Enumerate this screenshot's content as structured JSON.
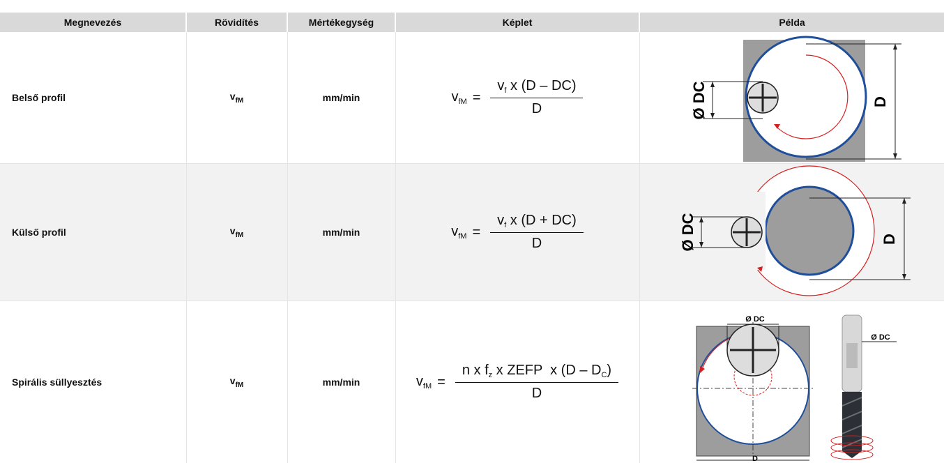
{
  "header": {
    "columns": [
      "Megnevezés",
      "Rövidítés",
      "Mértékegység",
      "Képlet",
      "Példa"
    ]
  },
  "rows": [
    {
      "name": "Belső profil",
      "abbr": {
        "base": "v",
        "sub": "fM"
      },
      "unit": "mm/min",
      "formula": {
        "lhs": {
          "base": "v",
          "sub": "fM"
        },
        "equals": "=",
        "numerator": [
          {
            "text": "v",
            "sub": "f"
          },
          {
            "text": " x (D – DC)"
          }
        ],
        "denominator": "D"
      },
      "example_labels": [
        "Ø DC",
        "D"
      ]
    },
    {
      "name": "Külső profil",
      "abbr": {
        "base": "v",
        "sub": "fM"
      },
      "unit": "mm/min",
      "formula": {
        "lhs": {
          "base": "v",
          "sub": "fM"
        },
        "equals": "=",
        "numerator": [
          {
            "text": "v",
            "sub": "f"
          },
          {
            "text": " x (D + DC)"
          }
        ],
        "denominator": "D"
      },
      "example_labels": [
        "Ø DC",
        "D"
      ]
    },
    {
      "name": "Spirális süllyesztés",
      "abbr": {
        "base": "v",
        "sub": "fM"
      },
      "unit": "mm/min",
      "formula": {
        "lhs": {
          "base": "v",
          "sub": "fM"
        },
        "equals": "=",
        "numerator": [
          {
            "text": "n x f",
            "sub": "z"
          },
          {
            "text": " x ZEFP  x (D – D",
            "sub": "C"
          },
          {
            "text": ")"
          }
        ],
        "denominator": "D"
      },
      "example_labels": [
        "Ø DC",
        "D",
        "Ø DC"
      ]
    }
  ]
}
